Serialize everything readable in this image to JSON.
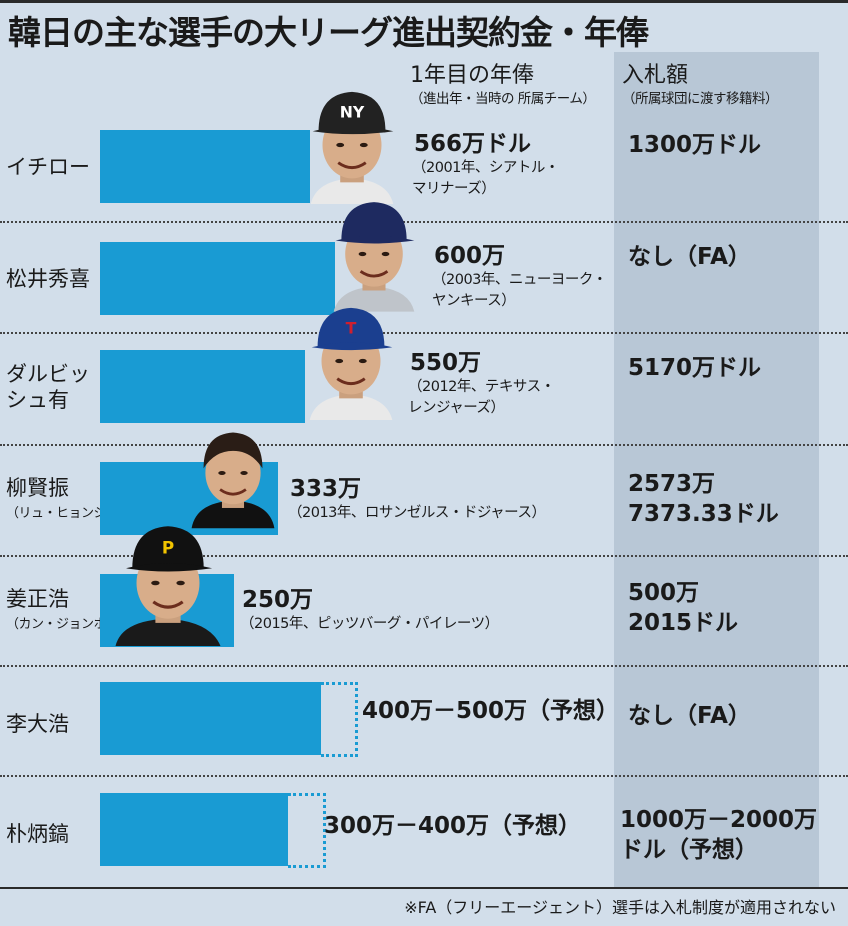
{
  "title": "韓日の主な選手の大リーグ進出契約金・年俸",
  "headers": {
    "salary": "1年目の年俸",
    "salary_note": "（進出年・当時の 所属チーム）",
    "bid": "入札額",
    "bid_note": "（所属球団に渡す移籍料）"
  },
  "colors": {
    "bar": "#199bd3",
    "bid_column": "#b8c7d6",
    "background": "#d2deea"
  },
  "chart_data": {
    "type": "bar",
    "unit": "万ドル",
    "categories": [
      "イチロー",
      "松井秀喜",
      "ダルビッシュ有",
      "柳賢振",
      "姜正浩",
      "李大浩",
      "朴炳鎬"
    ],
    "values": [
      566,
      600,
      550,
      333,
      250,
      400,
      300
    ],
    "expected_max": [
      null,
      null,
      null,
      null,
      null,
      500,
      400
    ],
    "rows": [
      {
        "name": "イチロー",
        "name_sub": "",
        "photo": "ichiro-photo",
        "cap": "NY",
        "value": 566,
        "value_label": "566万ドル",
        "detail": [
          "（2001年、シアトル・",
          "マリナーズ）"
        ],
        "bid": [
          "1300万ドル"
        ]
      },
      {
        "name": "松井秀喜",
        "name_sub": "",
        "photo": "matsui-photo",
        "cap": "",
        "value": 600,
        "value_label": "600万",
        "detail": [
          "（2003年、ニューヨーク・",
          "ヤンキース）"
        ],
        "bid": [
          "なし（FA）"
        ]
      },
      {
        "name": "ダルビッ",
        "name2": "シュ有",
        "name_sub": "",
        "photo": "darvish-photo",
        "cap": "T",
        "value": 550,
        "value_label": "550万",
        "detail": [
          "（2012年、テキサス・",
          "レンジャーズ）"
        ],
        "bid": [
          "5170万ドル"
        ]
      },
      {
        "name": "柳賢振",
        "name_sub": "（リュ・ヒョンジン）",
        "photo": "ryu-photo",
        "cap": "",
        "value": 333,
        "value_label": "333万",
        "detail": [
          "（2013年、ロサンゼルス・ドジャース）"
        ],
        "bid": [
          "2573万",
          "7373.33ドル"
        ]
      },
      {
        "name": "姜正浩",
        "name_sub": "（カン・ジョンホ）",
        "photo": "kang-photo",
        "cap": "P",
        "value": 250,
        "value_label": "250万",
        "detail": [
          "（2015年、ピッツバーグ・パイレーツ）"
        ],
        "bid": [
          "500万",
          "2015ドル"
        ]
      },
      {
        "name": "李大浩",
        "name_sub": "",
        "photo": "",
        "value": 400,
        "value_max": 500,
        "value_label": "400万－500万（予想）",
        "detail": [],
        "bid": [
          "なし（FA）"
        ]
      },
      {
        "name": "朴炳鎬",
        "name_sub": "",
        "photo": "",
        "value": 300,
        "value_max": 400,
        "value_label": "300万－400万（予想）",
        "detail": [],
        "bid": [
          "1000万－2000万",
          "ドル（予想）"
        ]
      }
    ]
  },
  "footnote": "※FA（フリーエージェント）選手は入札制度が適用されない"
}
